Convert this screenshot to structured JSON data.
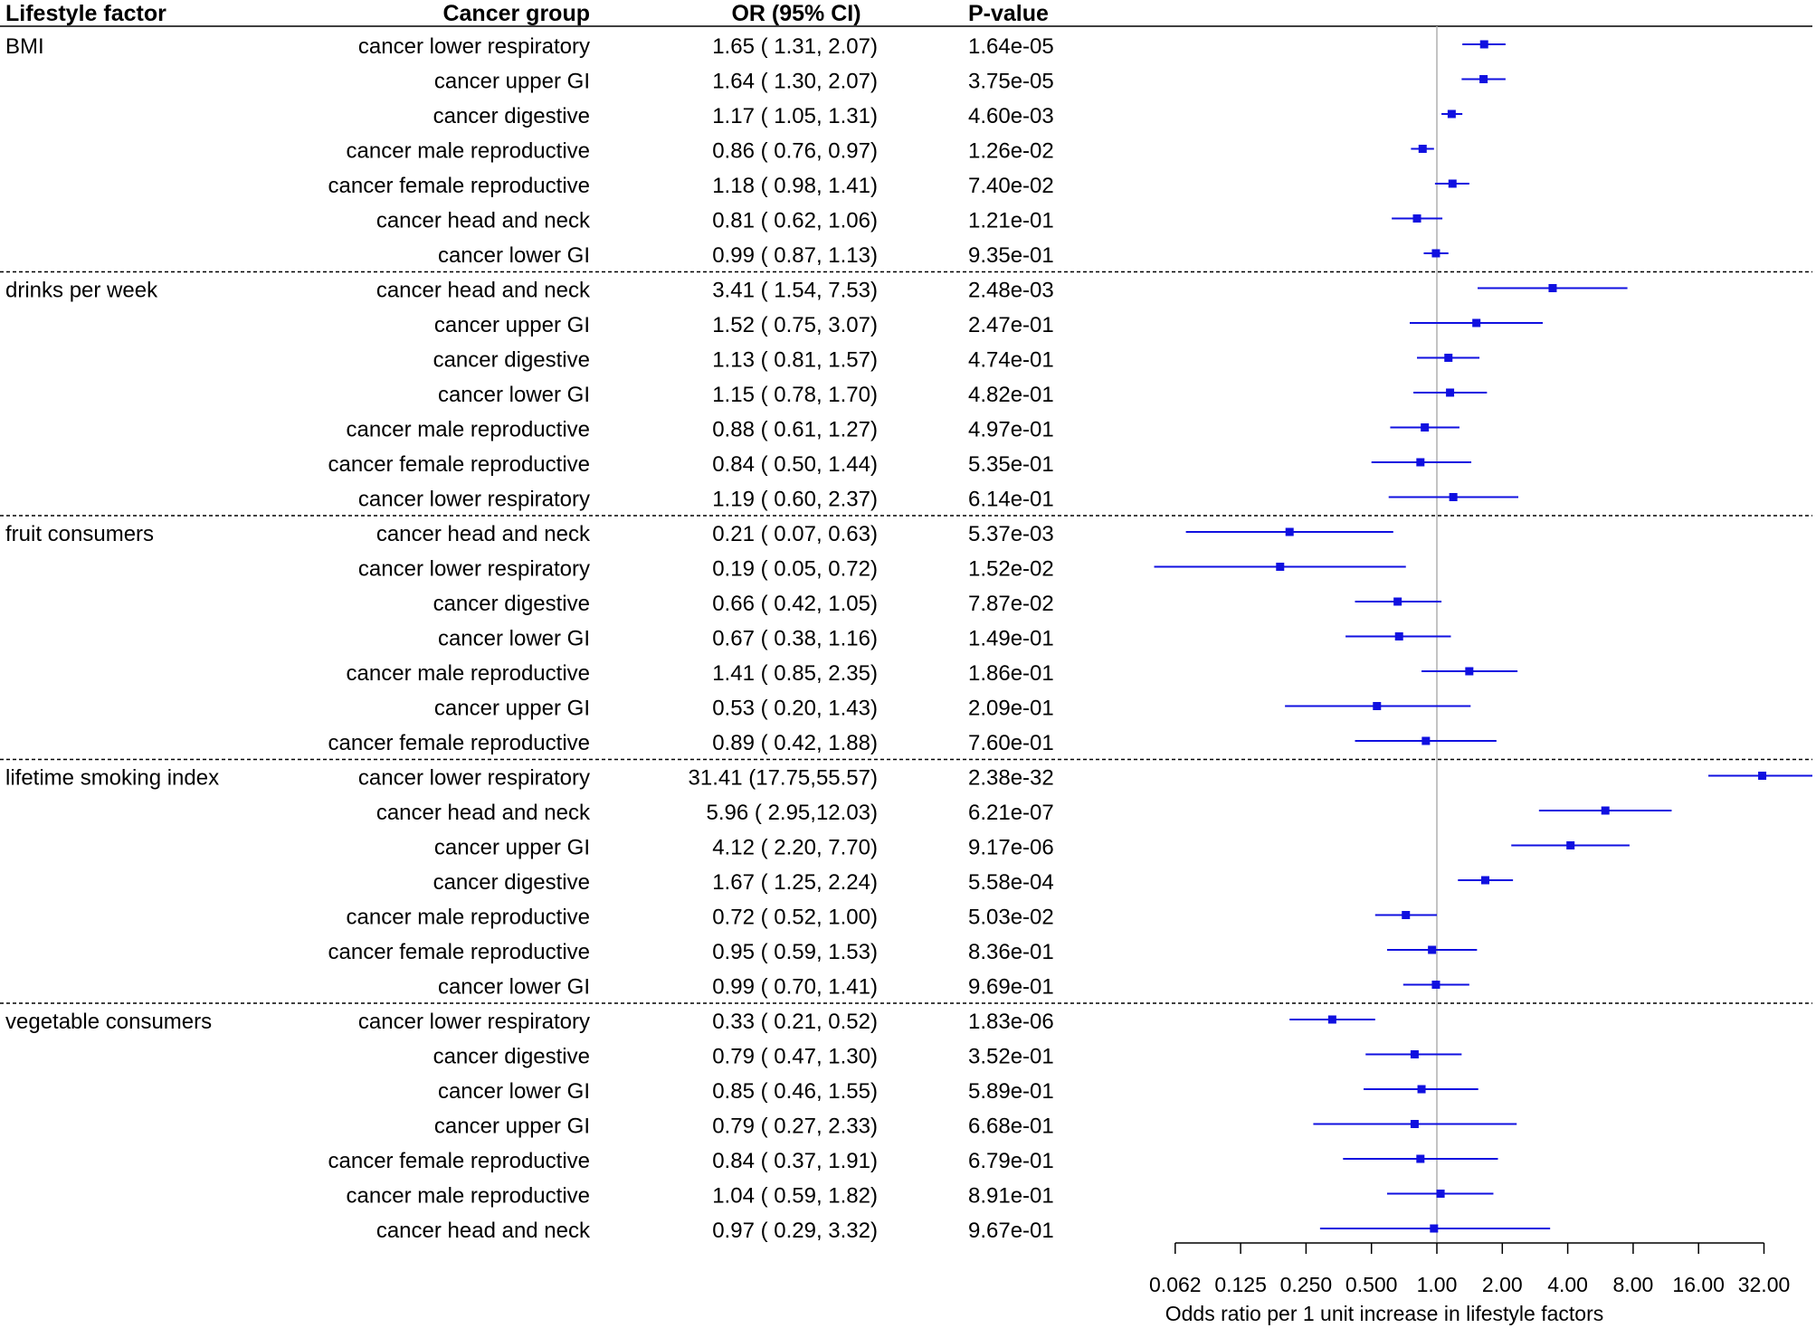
{
  "chart_data": {
    "type": "forest",
    "headers": {
      "factor": "Lifestyle factor",
      "group": "Cancer group",
      "or": "OR (95% CI)",
      "p": "P-value"
    },
    "xlabel": "Odds ratio per 1 unit increase in lifestyle factors",
    "x_scale": "log2",
    "xlim": [
      0.062,
      45
    ],
    "reference_line": 1,
    "ticks": [
      0.0625,
      0.125,
      0.25,
      0.5,
      1,
      2,
      4,
      8,
      16,
      32
    ],
    "tick_labels": [
      "0.062",
      "0.125",
      "0.250",
      "0.500",
      "1.00",
      "2.00",
      "4.00",
      "8.00",
      "16.00",
      "32.00"
    ],
    "colors": {
      "marker": "#1010e0",
      "reference": "#b0b0b0",
      "axis": "#000000"
    },
    "groups": [
      {
        "factor": "BMI",
        "rows": [
          {
            "group": "cancer lower respiratory",
            "or": 1.65,
            "lo": 1.31,
            "hi": 2.07,
            "or_text": "1.65 ( 1.31, 2.07)",
            "p": "1.64e-05"
          },
          {
            "group": "cancer upper GI",
            "or": 1.64,
            "lo": 1.3,
            "hi": 2.07,
            "or_text": "1.64 ( 1.30, 2.07)",
            "p": "3.75e-05"
          },
          {
            "group": "cancer digestive",
            "or": 1.17,
            "lo": 1.05,
            "hi": 1.31,
            "or_text": "1.17 ( 1.05, 1.31)",
            "p": "4.60e-03"
          },
          {
            "group": "cancer male reproductive",
            "or": 0.86,
            "lo": 0.76,
            "hi": 0.97,
            "or_text": "0.86 ( 0.76, 0.97)",
            "p": "1.26e-02"
          },
          {
            "group": "cancer female reproductive",
            "or": 1.18,
            "lo": 0.98,
            "hi": 1.41,
            "or_text": "1.18 ( 0.98, 1.41)",
            "p": "7.40e-02"
          },
          {
            "group": "cancer head and neck",
            "or": 0.81,
            "lo": 0.62,
            "hi": 1.06,
            "or_text": "0.81 ( 0.62, 1.06)",
            "p": "1.21e-01"
          },
          {
            "group": "cancer lower GI",
            "or": 0.99,
            "lo": 0.87,
            "hi": 1.13,
            "or_text": "0.99 ( 0.87, 1.13)",
            "p": "9.35e-01"
          }
        ]
      },
      {
        "factor": "drinks per week",
        "rows": [
          {
            "group": "cancer head and neck",
            "or": 3.41,
            "lo": 1.54,
            "hi": 7.53,
            "or_text": "3.41 ( 1.54, 7.53)",
            "p": "2.48e-03"
          },
          {
            "group": "cancer upper GI",
            "or": 1.52,
            "lo": 0.75,
            "hi": 3.07,
            "or_text": "1.52 ( 0.75, 3.07)",
            "p": "2.47e-01"
          },
          {
            "group": "cancer digestive",
            "or": 1.13,
            "lo": 0.81,
            "hi": 1.57,
            "or_text": "1.13 ( 0.81, 1.57)",
            "p": "4.74e-01"
          },
          {
            "group": "cancer lower GI",
            "or": 1.15,
            "lo": 0.78,
            "hi": 1.7,
            "or_text": "1.15 ( 0.78, 1.70)",
            "p": "4.82e-01"
          },
          {
            "group": "cancer male reproductive",
            "or": 0.88,
            "lo": 0.61,
            "hi": 1.27,
            "or_text": "0.88 ( 0.61, 1.27)",
            "p": "4.97e-01"
          },
          {
            "group": "cancer female reproductive",
            "or": 0.84,
            "lo": 0.5,
            "hi": 1.44,
            "or_text": "0.84 ( 0.50, 1.44)",
            "p": "5.35e-01"
          },
          {
            "group": "cancer lower respiratory",
            "or": 1.19,
            "lo": 0.6,
            "hi": 2.37,
            "or_text": "1.19 ( 0.60, 2.37)",
            "p": "6.14e-01"
          }
        ]
      },
      {
        "factor": "fruit consumers",
        "rows": [
          {
            "group": "cancer head and neck",
            "or": 0.21,
            "lo": 0.07,
            "hi": 0.63,
            "or_text": "0.21 ( 0.07, 0.63)",
            "p": "5.37e-03"
          },
          {
            "group": "cancer lower respiratory",
            "or": 0.19,
            "lo": 0.05,
            "hi": 0.72,
            "or_text": "0.19 ( 0.05, 0.72)",
            "p": "1.52e-02"
          },
          {
            "group": "cancer digestive",
            "or": 0.66,
            "lo": 0.42,
            "hi": 1.05,
            "or_text": "0.66 ( 0.42, 1.05)",
            "p": "7.87e-02"
          },
          {
            "group": "cancer lower GI",
            "or": 0.67,
            "lo": 0.38,
            "hi": 1.16,
            "or_text": "0.67 ( 0.38, 1.16)",
            "p": "1.49e-01"
          },
          {
            "group": "cancer male reproductive",
            "or": 1.41,
            "lo": 0.85,
            "hi": 2.35,
            "or_text": "1.41 ( 0.85, 2.35)",
            "p": "1.86e-01"
          },
          {
            "group": "cancer upper GI",
            "or": 0.53,
            "lo": 0.2,
            "hi": 1.43,
            "or_text": "0.53 ( 0.20, 1.43)",
            "p": "2.09e-01"
          },
          {
            "group": "cancer female reproductive",
            "or": 0.89,
            "lo": 0.42,
            "hi": 1.88,
            "or_text": "0.89 ( 0.42, 1.88)",
            "p": "7.60e-01"
          }
        ]
      },
      {
        "factor": "lifetime smoking index",
        "rows": [
          {
            "group": "cancer lower respiratory",
            "or": 31.41,
            "lo": 17.75,
            "hi": 55.57,
            "or_text": "31.41 (17.75,55.57)",
            "p": "2.38e-32"
          },
          {
            "group": "cancer head and neck",
            "or": 5.96,
            "lo": 2.95,
            "hi": 12.03,
            "or_text": "5.96 ( 2.95,12.03)",
            "p": "6.21e-07"
          },
          {
            "group": "cancer upper GI",
            "or": 4.12,
            "lo": 2.2,
            "hi": 7.7,
            "or_text": "4.12 ( 2.20, 7.70)",
            "p": "9.17e-06"
          },
          {
            "group": "cancer digestive",
            "or": 1.67,
            "lo": 1.25,
            "hi": 2.24,
            "or_text": "1.67 ( 1.25, 2.24)",
            "p": "5.58e-04"
          },
          {
            "group": "cancer male reproductive",
            "or": 0.72,
            "lo": 0.52,
            "hi": 1.0,
            "or_text": "0.72 ( 0.52, 1.00)",
            "p": "5.03e-02"
          },
          {
            "group": "cancer female reproductive",
            "or": 0.95,
            "lo": 0.59,
            "hi": 1.53,
            "or_text": "0.95 ( 0.59, 1.53)",
            "p": "8.36e-01"
          },
          {
            "group": "cancer lower GI",
            "or": 0.99,
            "lo": 0.7,
            "hi": 1.41,
            "or_text": "0.99 ( 0.70, 1.41)",
            "p": "9.69e-01"
          }
        ]
      },
      {
        "factor": "vegetable consumers",
        "rows": [
          {
            "group": "cancer lower respiratory",
            "or": 0.33,
            "lo": 0.21,
            "hi": 0.52,
            "or_text": "0.33 ( 0.21, 0.52)",
            "p": "1.83e-06"
          },
          {
            "group": "cancer digestive",
            "or": 0.79,
            "lo": 0.47,
            "hi": 1.3,
            "or_text": "0.79 ( 0.47, 1.30)",
            "p": "3.52e-01"
          },
          {
            "group": "cancer lower GI",
            "or": 0.85,
            "lo": 0.46,
            "hi": 1.55,
            "or_text": "0.85 ( 0.46, 1.55)",
            "p": "5.89e-01"
          },
          {
            "group": "cancer upper GI",
            "or": 0.79,
            "lo": 0.27,
            "hi": 2.33,
            "or_text": "0.79 ( 0.27, 2.33)",
            "p": "6.68e-01"
          },
          {
            "group": "cancer female reproductive",
            "or": 0.84,
            "lo": 0.37,
            "hi": 1.91,
            "or_text": "0.84 ( 0.37, 1.91)",
            "p": "6.79e-01"
          },
          {
            "group": "cancer male reproductive",
            "or": 1.04,
            "lo": 0.59,
            "hi": 1.82,
            "or_text": "1.04 ( 0.59, 1.82)",
            "p": "8.91e-01"
          },
          {
            "group": "cancer head and neck",
            "or": 0.97,
            "lo": 0.29,
            "hi": 3.32,
            "or_text": "0.97 ( 0.29, 3.32)",
            "p": "9.67e-01"
          }
        ]
      }
    ]
  }
}
